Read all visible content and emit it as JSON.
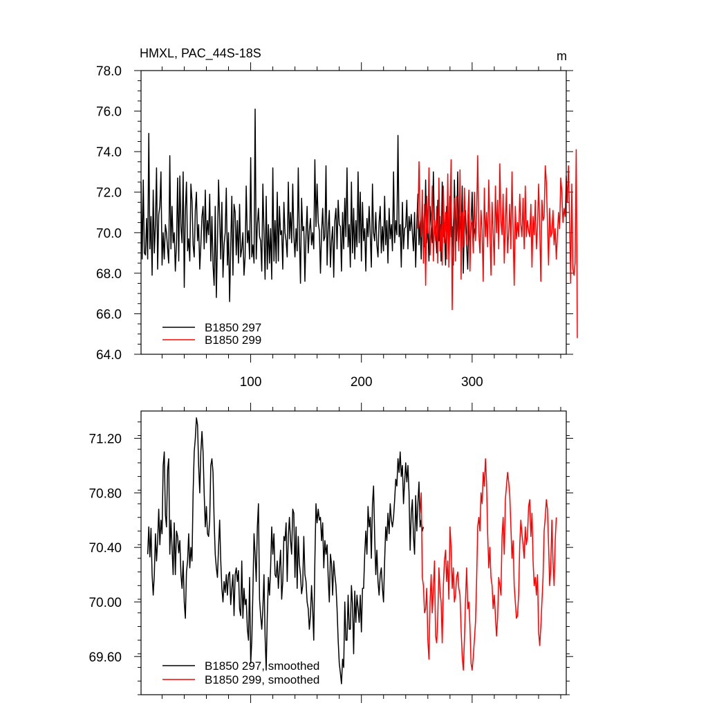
{
  "chart_data": [
    {
      "type": "line",
      "title_left": "HMXL, PAC_44S-18S",
      "title_right": "m",
      "xlim": [
        1,
        385
      ],
      "ylim": [
        64.0,
        78.0
      ],
      "x_ticks": [
        100,
        200,
        300
      ],
      "x_tick_labels": [
        "100",
        "200",
        "300"
      ],
      "y_ticks": [
        64.0,
        66.0,
        68.0,
        70.0,
        72.0,
        74.0,
        76.0,
        78.0
      ],
      "y_tick_labels": [
        "64.0",
        "66.0",
        "68.0",
        "70.0",
        "72.0",
        "74.0",
        "76.0",
        "78.0"
      ],
      "grid": false,
      "legend_position": "bottom-left",
      "series": [
        {
          "name": "B1850 297",
          "color": "#000000",
          "x_start": 1,
          "values": [
            72.5,
            68.7,
            72.6,
            69.0,
            68.9,
            70.7,
            68.7,
            74.9,
            69.2,
            70.8,
            67.9,
            72.1,
            69.0,
            70.4,
            73.2,
            68.2,
            70.9,
            71.3,
            73.0,
            68.4,
            70.0,
            68.7,
            70.4,
            70.0,
            69.2,
            68.5,
            73.8,
            69.2,
            71.3,
            69.5,
            70.0,
            68.1,
            69.5,
            72.7,
            68.6,
            72.8,
            70.3,
            69.5,
            73.0,
            67.3,
            71.1,
            72.5,
            69.1,
            69.7,
            68.6,
            72.4,
            71.6,
            69.4,
            68.8,
            71.1,
            72.0,
            69.6,
            70.4,
            68.2,
            69.4,
            70.8,
            71.3,
            69.2,
            72.1,
            69.5,
            70.6,
            69.9,
            71.9,
            68.6,
            70.8,
            68.4,
            67.4,
            71.3,
            66.8,
            69.5,
            72.6,
            70.7,
            68.7,
            71.5,
            67.8,
            69.4,
            70.0,
            72.2,
            68.4,
            70.0,
            66.6,
            69.3,
            71.8,
            67.9,
            71.4,
            71.0,
            68.9,
            70.6,
            68.5,
            71.4,
            68.8,
            69.2,
            70.0,
            67.9,
            68.8,
            72.3,
            69.5,
            70.1,
            68.7,
            73.7,
            68.8,
            69.4,
            68.5,
            76.1,
            68.7,
            70.4,
            71.2,
            69.8,
            69.6,
            68.1,
            72.4,
            70.0,
            67.7,
            71.8,
            68.2,
            70.4,
            68.5,
            70.2,
            67.7,
            73.2,
            68.6,
            70.6,
            68.5,
            72.0,
            68.6,
            71.3,
            69.9,
            70.1,
            68.2,
            71.5,
            70.0,
            69.6,
            68.8,
            72.5,
            69.7,
            71.0,
            69.5,
            72.4,
            69.9,
            68.8,
            70.2,
            69.1,
            73.2,
            69.8,
            67.5,
            71.7,
            70.1,
            70.3,
            67.6,
            69.9,
            71.3,
            69.0,
            70.1,
            70.7,
            69.4,
            70.0,
            69.2,
            73.6,
            70.3,
            72.4,
            70.5,
            70.1,
            68.0,
            70.0,
            71.2,
            69.6,
            69.8,
            73.3,
            68.4,
            70.2,
            71.1,
            68.3,
            69.6,
            70.3,
            67.8,
            70.6,
            71.2,
            69.2,
            71.6,
            70.4,
            70.3,
            68.1,
            71.0,
            69.2,
            71.7,
            69.8,
            73.2,
            69.3,
            70.4,
            68.3,
            72.5,
            69.0,
            71.2,
            68.7,
            70.6,
            69.3,
            73.0,
            69.5,
            72.0,
            68.6,
            71.5,
            69.6,
            70.2,
            68.1,
            70.7,
            69.8,
            71.3,
            69.9,
            68.3,
            72.4,
            70.0,
            69.6,
            71.0,
            69.4,
            68.8,
            70.5,
            71.3,
            69.0,
            70.3,
            69.1,
            71.8,
            69.4,
            70.6,
            68.5,
            71.2,
            69.7,
            70.4,
            69.1,
            73.0,
            69.5,
            70.6,
            69.9,
            74.8,
            69.8,
            70.4,
            68.3,
            71.5,
            69.2,
            70.2,
            70.3,
            71.6,
            69.2,
            70.8,
            70.1,
            70.9,
            70.0,
            69.1,
            71.0,
            68.3,
            70.4,
            71.9,
            69.4,
            70.6,
            68.7,
            71.4,
            70.1,
            69.3,
            72.6,
            69.5,
            70.3,
            68.6,
            71.3,
            70.4,
            69.5,
            73.0,
            70.1,
            70.3,
            69.0,
            71.6,
            69.6,
            70.8,
            68.6,
            72.5,
            69.8,
            70.5,
            68.4,
            71.3,
            70.6,
            68.9,
            71.8,
            69.8,
            70.3,
            68.4,
            72.6,
            70.1,
            69.6,
            73.0,
            69.4,
            70.8,
            69.7,
            72.3,
            68.0,
            70.6,
            71.1,
            69.4,
            68.2,
            70.9,
            69.0,
            70.4,
            72.0,
            69.6,
            70.1,
            70.3
          ]
        },
        {
          "name": "B1850 299",
          "color": "#ff0000",
          "x_start": 251,
          "values": [
            70.2,
            73.5,
            70.8,
            69.8,
            72.1,
            68.5,
            71.4,
            67.4,
            71.8,
            70.0,
            73.2,
            68.9,
            70.1,
            72.3,
            68.6,
            70.6,
            69.6,
            71.3,
            68.5,
            72.7,
            69.1,
            70.4,
            68.4,
            72.3,
            69.5,
            71.0,
            68.7,
            72.9,
            68.3,
            70.7,
            73.6,
            66.2,
            70.4,
            71.7,
            68.6,
            71.8,
            70.3,
            69.1,
            73.1,
            67.7,
            71.0,
            69.3,
            72.2,
            70.2,
            69.4,
            70.6,
            72.1,
            68.1,
            70.6,
            70.4,
            69.0,
            72.0,
            69.6,
            70.9,
            73.8,
            70.0,
            69.0,
            71.1,
            70.1,
            67.6,
            72.2,
            69.8,
            71.0,
            69.3,
            72.6,
            70.2,
            67.9,
            71.5,
            70.0,
            68.4,
            72.3,
            70.0,
            71.6,
            69.2,
            73.4,
            70.6,
            69.9,
            71.9,
            68.5,
            70.4,
            72.2,
            69.0,
            70.0,
            71.4,
            69.2,
            73.0,
            70.1,
            67.4,
            71.3,
            69.7,
            70.5,
            69.8,
            71.9,
            70.4,
            69.8,
            71.7,
            69.2,
            72.3,
            69.8,
            70.6,
            70.1,
            69.8,
            71.4,
            68.3,
            70.8,
            69.9,
            71.6,
            69.2,
            70.3,
            72.4,
            70.3,
            67.6,
            71.6,
            70.6,
            70.8,
            73.3,
            72.5,
            70.5,
            68.4,
            71.2,
            69.8,
            70.0,
            71.1,
            69.4,
            70.2,
            68.7,
            69.9,
            71.0,
            70.2,
            72.7,
            72.0,
            70.5,
            71.2,
            70.8,
            72.8,
            71.5,
            73.3,
            70.7,
            67.5,
            72.4,
            68.2,
            67.9,
            68.5,
            74.1,
            64.8
          ]
        }
      ]
    },
    {
      "type": "line",
      "xlim": [
        1,
        385
      ],
      "ylim": [
        69.32,
        71.4
      ],
      "y_ticks": [
        69.6,
        70.0,
        70.4,
        70.8,
        71.2
      ],
      "y_tick_labels": [
        "69.60",
        "70.00",
        "70.40",
        "70.80",
        "71.20"
      ],
      "grid": false,
      "legend_position": "bottom-left",
      "series": [
        {
          "name": "B1850 297, smoothed",
          "color": "#000000",
          "x_start": 7,
          "values": [
            70.35,
            70.55,
            70.33,
            70.54,
            70.2,
            70.05,
            70.2,
            70.5,
            70.3,
            70.45,
            70.68,
            70.42,
            70.6,
            70.5,
            71.0,
            71.1,
            70.64,
            70.55,
            70.97,
            71.05,
            70.35,
            70.6,
            70.4,
            70.2,
            70.58,
            70.2,
            70.52,
            70.48,
            70.36,
            70.45,
            70.2,
            70.1,
            70.3,
            70.0,
            69.88,
            70.22,
            70.3,
            70.5,
            70.25,
            70.4,
            70.3,
            70.8,
            71.1,
            71.2,
            71.35,
            71.3,
            71.0,
            70.8,
            71.1,
            71.25,
            71.1,
            70.8,
            70.55,
            70.7,
            70.5,
            70.48,
            70.6,
            71.0,
            71.05,
            70.95,
            70.6,
            70.35,
            70.25,
            70.18,
            70.4,
            70.6,
            70.3,
            70.1,
            70.0,
            70.15,
            70.07,
            70.2,
            70.05,
            70.2,
            70.22,
            69.98,
            70.1,
            70.2,
            69.9,
            70.2,
            70.25,
            70.15,
            70.23,
            69.95,
            69.9,
            70.3,
            69.88,
            70.1,
            69.98,
            70.02,
            69.8,
            69.72,
            70.18,
            69.55,
            69.72,
            70.08,
            70.5,
            70.35,
            70.15,
            70.55,
            70.72,
            70.02,
            69.9,
            69.8,
            69.95,
            70.2,
            69.75,
            69.5,
            69.9,
            70.18,
            70.05,
            70.25,
            70.55,
            70.35,
            70.5,
            70.2,
            70.18,
            70.3,
            70.1,
            70.25,
            70.38,
            70.02,
            70.15,
            70.48,
            70.45,
            70.58,
            70.15,
            70.48,
            70.62,
            70.45,
            70.35,
            70.68,
            70.65,
            70.18,
            70.55,
            70.1,
            70.48,
            70.28,
            70.2,
            70.06,
            70.12,
            70.48,
            70.2,
            70.15,
            70.0,
            69.95,
            69.8,
            69.9,
            70.12,
            69.95,
            69.72,
            70.3,
            70.72,
            70.58,
            70.68,
            70.6,
            70.62,
            70.45,
            70.58,
            70.25,
            70.45,
            70.35,
            70.42,
            70.18,
            70.0,
            70.35,
            70.28,
            70.05,
            70.3,
            70.2,
            70.12,
            69.95,
            69.72,
            69.55,
            69.48,
            69.4,
            69.58,
            69.52,
            70.0,
            69.72,
            69.72,
            70.05,
            69.8,
            69.8,
            70.12,
            69.98,
            69.62,
            70.08,
            69.85,
            70.05,
            69.95,
            69.85,
            70.05,
            69.78,
            70.1,
            70.1,
            70.35,
            70.52,
            70.35,
            70.7,
            70.55,
            70.62,
            70.32,
            70.72,
            70.85,
            70.48,
            70.2,
            70.38,
            70.15,
            70.05,
            70.2,
            70.25,
            70.1,
            70.0,
            70.3,
            70.55,
            70.45,
            70.65,
            70.5,
            70.72,
            70.6,
            70.55,
            70.62,
            70.75,
            70.9,
            70.85,
            71.05,
            70.95,
            71.1,
            70.92,
            71.0,
            70.72,
            70.88,
            71.02,
            70.88,
            71.0,
            70.8,
            70.38,
            70.65,
            70.75,
            70.48,
            70.35,
            70.78,
            70.52,
            70.72,
            70.88,
            70.55,
            70.6,
            70.52,
            70.55
          ]
        },
        {
          "name": "B1850 299, smoothed",
          "color": "#ff0000",
          "x_start": 253,
          "values": [
            70.65,
            70.8,
            70.18,
            70.12,
            69.92,
            69.95,
            70.1,
            69.72,
            69.58,
            70.0,
            70.2,
            69.92,
            70.1,
            70.3,
            69.75,
            69.7,
            69.9,
            70.25,
            70.08,
            70.0,
            69.7,
            70.12,
            70.3,
            70.38,
            70.15,
            70.3,
            70.02,
            70.55,
            70.4,
            70.1,
            70.25,
            70.0,
            70.05,
            70.18,
            70.22,
            70.1,
            70.05,
            69.8,
            69.6,
            69.5,
            69.72,
            70.02,
            70.25,
            69.95,
            70.0,
            69.82,
            69.55,
            69.5,
            69.6,
            69.72,
            69.85,
            70.15,
            70.55,
            70.62,
            70.52,
            70.8,
            70.72,
            70.95,
            70.85,
            71.05,
            70.88,
            70.5,
            70.25,
            70.4,
            70.18,
            70.12,
            69.95,
            70.05,
            69.9,
            69.75,
            69.88,
            70.18,
            70.12,
            70.05,
            70.48,
            70.62,
            70.35,
            70.75,
            70.85,
            70.95,
            70.88,
            70.78,
            70.55,
            70.32,
            70.45,
            70.12,
            70.0,
            69.88,
            69.9,
            70.05,
            70.42,
            70.6,
            70.5,
            70.42,
            70.32,
            70.55,
            70.42,
            70.48,
            70.7,
            70.75,
            70.48,
            70.65,
            70.3,
            70.12,
            70.18,
            70.05,
            70.2,
            69.78,
            69.68,
            69.82,
            70.0,
            70.18,
            70.52,
            70.62,
            70.75,
            70.68,
            70.42,
            70.12,
            70.25,
            70.6,
            70.3,
            70.12,
            70.45,
            70.62
          ]
        }
      ]
    }
  ]
}
